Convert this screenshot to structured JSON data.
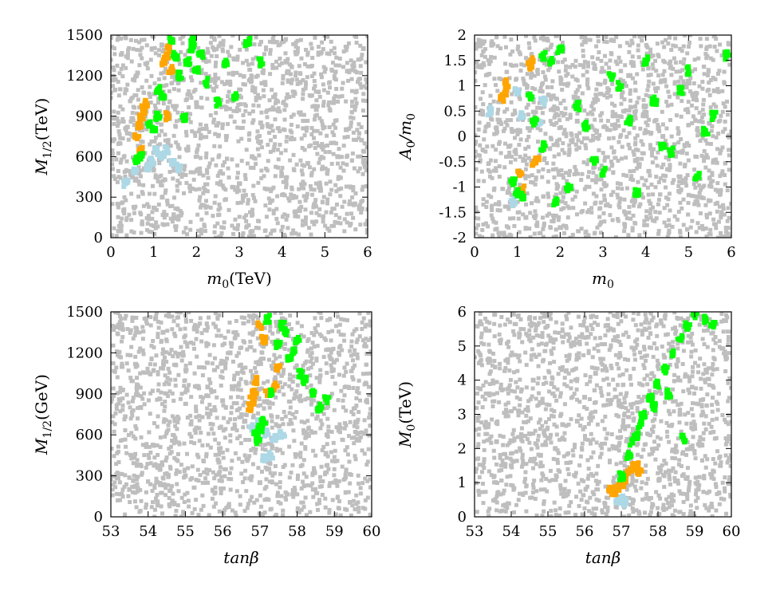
{
  "chart_data": [
    {
      "id": "p1",
      "type": "scatter",
      "xlabel": "m",
      "xlabel_sub": "0",
      "xlabel_rest": "(TeV)",
      "ylabel": "M",
      "ylabel_sub": "1/2",
      "ylabel_rest": "(TeV)",
      "xlim": [
        0,
        6
      ],
      "ylim": [
        0,
        1500
      ],
      "xticks": [
        0,
        1,
        2,
        3,
        4,
        5,
        6
      ],
      "yticks": [
        0,
        300,
        600,
        900,
        1200,
        1500
      ],
      "grid": false,
      "legend": "none",
      "colors": {
        "background": "#bebebe",
        "lightblue": "#add8e6",
        "orange": "#ffa500",
        "green": "#00ff00"
      },
      "series": [
        {
          "color": "#bebebe",
          "x": [
            0.3,
            0.5,
            0.8,
            1.2,
            1.8,
            2.4,
            3.0,
            3.5,
            4.1,
            4.6,
            5.2,
            5.7,
            0.6,
            1.5,
            2.7,
            3.8,
            4.9,
            5.5,
            0.2,
            2.0,
            3.3,
            4.4,
            5.9,
            1.0,
            2.2,
            3.6,
            4.8,
            5.3
          ],
          "y": [
            200,
            450,
            900,
            300,
            650,
            1100,
            400,
            850,
            1300,
            550,
            1000,
            250,
            1200,
            150,
            750,
            1450,
            350,
            800,
            50,
            1000,
            600,
            200,
            1400,
            500,
            350,
            1150,
            950,
            600
          ]
        },
        {
          "color": "#add8e6",
          "x": [
            0.35,
            0.55,
            0.85,
            0.95,
            1.05,
            1.2,
            1.3,
            1.45,
            1.6
          ],
          "y": [
            400,
            480,
            520,
            560,
            640,
            600,
            650,
            550,
            520
          ]
        },
        {
          "color": "#ffa500",
          "x": [
            0.6,
            0.65,
            0.7,
            0.75,
            0.8,
            1.25,
            1.3,
            1.35,
            1.4,
            1.3,
            0.7
          ],
          "y": [
            750,
            820,
            880,
            950,
            1000,
            1300,
            1350,
            1400,
            1250,
            900,
            640
          ]
        },
        {
          "color": "#00ff00",
          "x": [
            0.6,
            0.7,
            0.9,
            1.0,
            1.1,
            1.2,
            1.4,
            1.5,
            1.8,
            1.9,
            2.0,
            1.6,
            2.2,
            2.5,
            2.7,
            2.9,
            3.2,
            3.5,
            1.9,
            2.1,
            1.1,
            1.7
          ],
          "y": [
            580,
            600,
            850,
            800,
            900,
            1050,
            1450,
            1350,
            1300,
            1400,
            1250,
            1200,
            1150,
            1000,
            1300,
            1050,
            1450,
            1300,
            1450,
            1350,
            1100,
            880
          ]
        }
      ]
    },
    {
      "id": "p2",
      "type": "scatter",
      "xlabel": "m",
      "xlabel_sub": "0",
      "xlabel_rest": "",
      "ylabel": "A",
      "ylabel_sub": "0",
      "ylabel_rest": "/m",
      "ylabel_sub2": "0",
      "xlim": [
        0,
        6
      ],
      "ylim": [
        -2,
        2
      ],
      "xticks": [
        0,
        1,
        2,
        3,
        4,
        5,
        6
      ],
      "yticks": [
        -2,
        -1.5,
        -1,
        -0.5,
        0,
        0.5,
        1,
        1.5,
        2
      ],
      "grid": false,
      "legend": "none",
      "colors": {
        "background": "#bebebe",
        "lightblue": "#add8e6",
        "orange": "#ffa500",
        "green": "#00ff00"
      },
      "series": [
        {
          "color": "#bebebe",
          "x": [
            0.4,
            1.2,
            2.4,
            3.6,
            4.8,
            5.6,
            0.8,
            2.0,
            3.2,
            4.4,
            5.2,
            1.6,
            2.8,
            4.0
          ],
          "y": [
            1.8,
            -1.6,
            0.3,
            1.2,
            -0.8,
            0.9,
            -0.2,
            -1.8,
            1.9,
            0.0,
            -1.3,
            1.5,
            -0.6,
            0.6
          ]
        },
        {
          "color": "#add8e6",
          "x": [
            0.35,
            0.9,
            1.0,
            1.1,
            1.5,
            1.6
          ],
          "y": [
            0.5,
            -1.3,
            0.9,
            0.4,
            0.3,
            0.7
          ]
        },
        {
          "color": "#ffa500",
          "x": [
            0.65,
            0.7,
            0.75,
            1.05,
            1.1,
            1.3,
            1.35,
            1.4,
            1.45
          ],
          "y": [
            0.75,
            0.85,
            1.05,
            -0.7,
            -1.05,
            1.4,
            1.5,
            -0.5,
            -0.45
          ]
        },
        {
          "color": "#00ff00",
          "x": [
            0.9,
            1.0,
            1.1,
            1.3,
            1.6,
            1.8,
            2.0,
            2.4,
            2.8,
            3.2,
            3.6,
            4.0,
            4.4,
            4.8,
            5.2,
            5.6,
            5.9,
            2.2,
            2.6,
            3.0,
            3.4,
            3.8,
            4.2,
            4.6,
            5.0,
            5.4,
            1.4,
            1.6,
            1.9
          ],
          "y": [
            -0.9,
            -1.1,
            -1.2,
            0.8,
            1.6,
            1.5,
            1.7,
            0.6,
            -0.5,
            1.2,
            0.3,
            1.5,
            -0.2,
            0.9,
            -0.8,
            0.4,
            1.6,
            -1.0,
            0.2,
            -0.7,
            1.0,
            -1.1,
            0.7,
            -0.3,
            1.3,
            0.1,
            0.3,
            -0.2,
            -1.3
          ]
        }
      ]
    },
    {
      "id": "p3",
      "type": "scatter",
      "xlabel": "tanβ",
      "xlabel_sub": "",
      "xlabel_rest": "",
      "ylabel": "M",
      "ylabel_sub": "1/2",
      "ylabel_rest": "(GeV)",
      "xlim": [
        53,
        60
      ],
      "ylim": [
        0,
        1500
      ],
      "xticks": [
        53,
        54,
        55,
        56,
        57,
        58,
        59,
        60
      ],
      "yticks": [
        0,
        300,
        600,
        900,
        1200,
        1500
      ],
      "grid": false,
      "legend": "none",
      "colors": {
        "background": "#bebebe",
        "lightblue": "#add8e6",
        "orange": "#ffa500",
        "green": "#00ff00"
      },
      "series": [
        {
          "color": "#bebebe",
          "x": [
            53.3,
            53.8,
            54.4,
            55.0,
            55.6,
            56.2,
            56.6,
            57.4,
            58.1,
            58.8,
            53.5,
            54.2,
            55.3,
            55.9,
            56.4,
            57.0,
            57.9,
            54.7,
            56.0,
            57.6
          ],
          "y": [
            1100,
            800,
            1350,
            300,
            950,
            1200,
            700,
            1000,
            850,
            600,
            200,
            1450,
            650,
            400,
            1050,
            250,
            1300,
            100,
            850,
            1450
          ]
        },
        {
          "color": "#add8e6",
          "x": [
            56.8,
            57.0,
            57.2,
            57.4,
            57.6,
            57.3,
            57.1
          ],
          "y": [
            650,
            700,
            620,
            580,
            600,
            450,
            420
          ]
        },
        {
          "color": "#ffa500",
          "x": [
            56.75,
            56.8,
            56.85,
            56.9,
            57.0,
            57.1,
            57.2,
            57.4,
            57.5
          ],
          "y": [
            800,
            850,
            900,
            1000,
            1400,
            1300,
            900,
            950,
            1100
          ]
        },
        {
          "color": "#00ff00",
          "x": [
            56.9,
            57.0,
            57.1,
            57.3,
            57.5,
            57.6,
            57.7,
            57.9,
            58.0,
            58.2,
            58.4,
            58.6,
            58.8,
            57.2,
            57.8,
            58.1,
            56.95
          ],
          "y": [
            600,
            650,
            700,
            900,
            1250,
            1400,
            1350,
            1200,
            1300,
            1000,
            900,
            800,
            850,
            1450,
            1150,
            1050,
            560
          ]
        }
      ]
    },
    {
      "id": "p4",
      "type": "scatter",
      "xlabel": "tanβ",
      "xlabel_sub": "",
      "xlabel_rest": "",
      "ylabel": "M",
      "ylabel_sub": "0",
      "ylabel_rest": "(TeV)",
      "xlim": [
        53,
        60
      ],
      "ylim": [
        0,
        6
      ],
      "xticks": [
        53,
        54,
        55,
        56,
        57,
        58,
        59,
        60
      ],
      "yticks": [
        0,
        1,
        2,
        3,
        4,
        5,
        6
      ],
      "grid": false,
      "legend": "none",
      "colors": {
        "background": "#bebebe",
        "lightblue": "#add8e6",
        "orange": "#ffa500",
        "green": "#00ff00"
      },
      "series": [
        {
          "color": "#bebebe",
          "x": [
            53.3,
            53.9,
            54.5,
            55.1,
            55.7,
            56.3,
            53.6,
            54.2,
            54.8,
            55.4,
            56.0,
            58.6,
            59.2,
            59.7,
            56.6,
            53.4,
            54.0,
            54.6,
            55.2,
            55.8
          ],
          "y": [
            5.5,
            4.6,
            5.8,
            3.9,
            5.1,
            4.2,
            2.2,
            3.1,
            1.8,
            2.7,
            3.5,
            3.0,
            2.1,
            1.5,
            5.6,
            3.6,
            1.5,
            4.0,
            2.0,
            2.8
          ]
        },
        {
          "color": "#add8e6",
          "x": [
            56.9,
            57.0,
            57.1
          ],
          "y": [
            0.45,
            0.5,
            0.4
          ]
        },
        {
          "color": "#ffa500",
          "x": [
            56.7,
            56.8,
            56.9,
            57.0,
            57.1,
            57.2,
            57.3,
            57.4,
            57.5
          ],
          "y": [
            0.75,
            0.7,
            0.85,
            1.0,
            1.1,
            1.3,
            1.45,
            1.5,
            1.35
          ]
        },
        {
          "color": "#00ff00",
          "x": [
            57.0,
            57.2,
            57.4,
            57.6,
            57.8,
            58.0,
            58.2,
            58.4,
            58.6,
            58.8,
            59.0,
            59.3,
            57.3,
            57.5,
            57.9,
            58.3,
            58.7,
            59.5
          ],
          "y": [
            1.2,
            1.8,
            2.4,
            3.0,
            3.5,
            3.9,
            4.3,
            4.8,
            5.2,
            5.6,
            5.9,
            5.8,
            2.2,
            2.7,
            3.2,
            3.6,
            2.3,
            5.6
          ]
        }
      ]
    }
  ]
}
